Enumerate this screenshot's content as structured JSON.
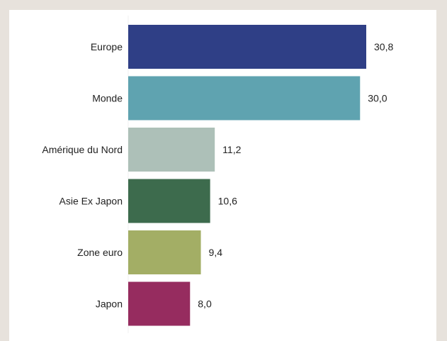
{
  "chart_data": {
    "type": "bar",
    "orientation": "horizontal",
    "categories": [
      "Europe",
      "Monde",
      "Amérique du Nord",
      "Asie Ex Japon",
      "Zone euro",
      "Japon"
    ],
    "values": [
      30.8,
      30.0,
      11.2,
      10.6,
      9.4,
      8.0
    ],
    "value_labels": [
      "30,8",
      "30,0",
      "11,2",
      "10,6",
      "9,4",
      "8,0"
    ],
    "colors": [
      "#2f3f86",
      "#5fa3b0",
      "#adc0b8",
      "#3d6b4d",
      "#a3ae65",
      "#962c5f"
    ],
    "title": "",
    "xlabel": "",
    "ylabel": "",
    "xlim": [
      0,
      30.8
    ],
    "grid": false,
    "legend": "none"
  }
}
